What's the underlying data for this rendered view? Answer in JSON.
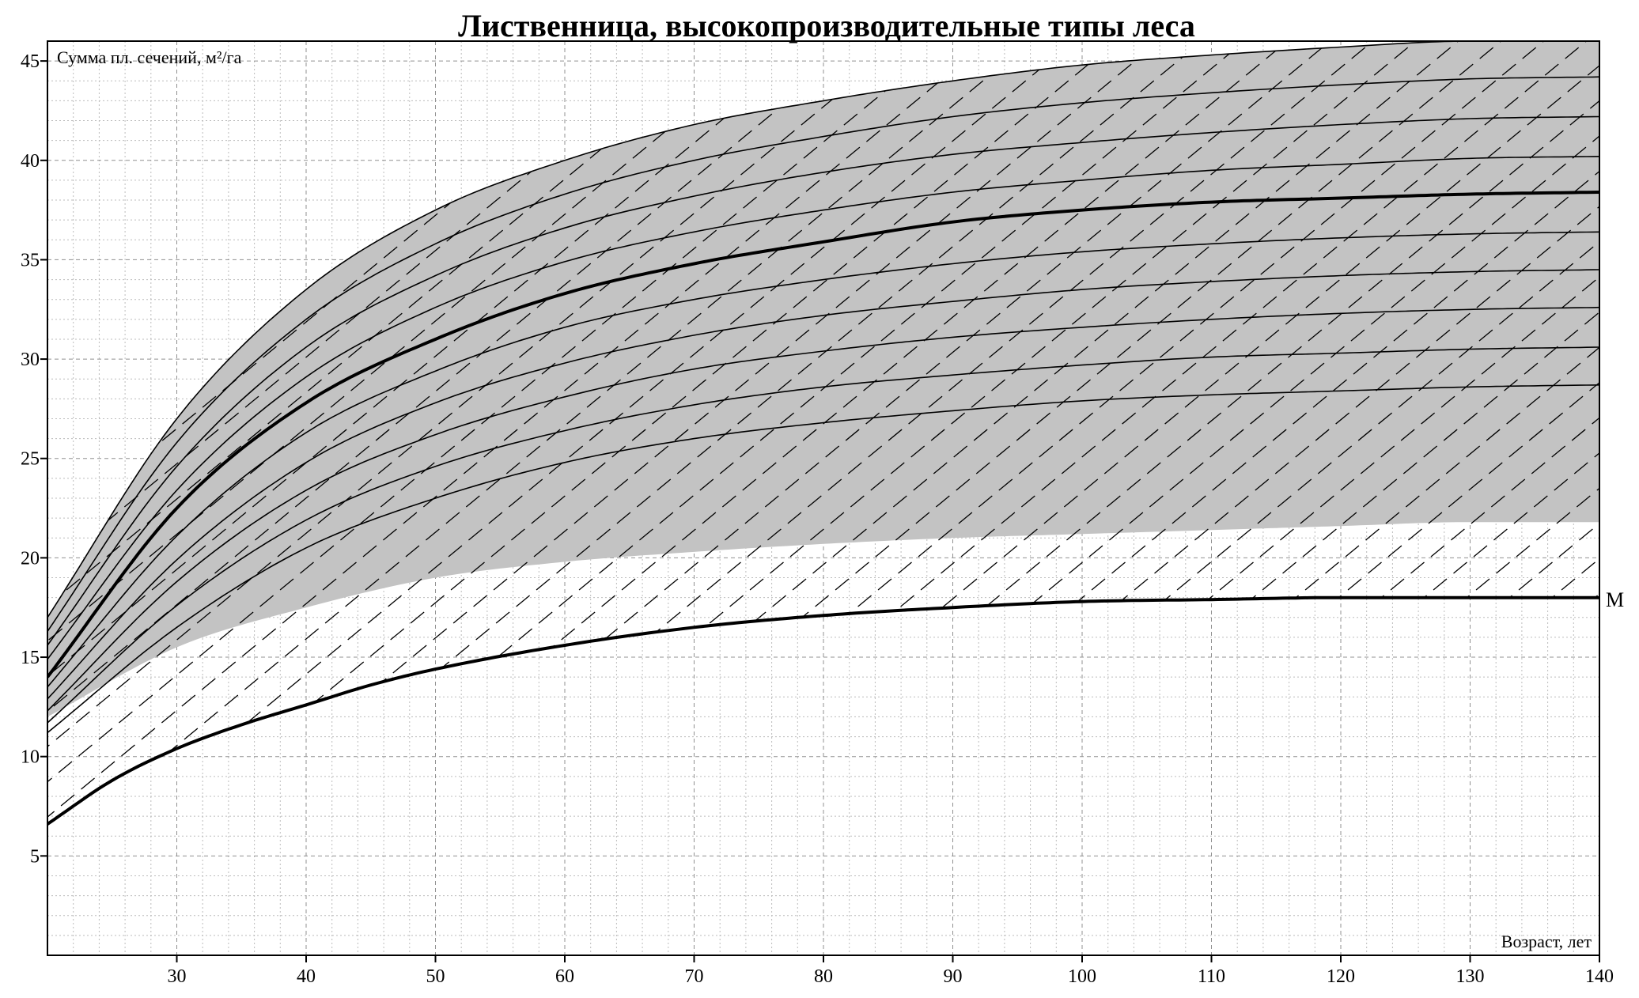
{
  "chart_data": {
    "type": "line",
    "title": "Лиственница, высокопроизводительные типы леса",
    "ylabel": "Сумма пл. сечений, м²/га",
    "xlabel": "Возраст, лет",
    "xlim": [
      20,
      140
    ],
    "ylim": [
      0,
      46
    ],
    "x_ticks": [
      30,
      40,
      50,
      60,
      70,
      80,
      90,
      100,
      110,
      120,
      130,
      140
    ],
    "y_ticks": [
      5,
      10,
      15,
      20,
      25,
      30,
      35,
      40,
      45
    ],
    "grid": true,
    "colors": {
      "band_fill": "#c3c3c3",
      "line": "#000000"
    },
    "band": {
      "x": [
        20,
        30,
        40,
        50,
        60,
        70,
        80,
        90,
        100,
        110,
        120,
        130,
        140
      ],
      "upper": [
        17.0,
        27.0,
        33.5,
        37.5,
        40.0,
        41.8,
        43.0,
        44.0,
        44.8,
        45.3,
        45.7,
        46.0,
        46.0
      ],
      "lower": [
        12.0,
        15.5,
        17.5,
        19.0,
        19.8,
        20.3,
        20.7,
        21.0,
        21.2,
        21.4,
        21.6,
        21.8,
        21.8
      ]
    },
    "series": [
      {
        "name": "",
        "x": [
          20,
          30,
          40,
          50,
          60,
          70,
          80,
          90,
          100,
          110,
          120,
          130,
          140
        ],
        "values": [
          17.0,
          27.0,
          33.5,
          37.5,
          40.0,
          41.8,
          43.0,
          44.0,
          44.8,
          45.3,
          45.7,
          46.0,
          46.0
        ]
      },
      {
        "name": "",
        "x": [
          20,
          30,
          40,
          50,
          60,
          70,
          80,
          90,
          100,
          110,
          120,
          130,
          140
        ],
        "values": [
          16.3,
          25.8,
          32.0,
          35.8,
          38.3,
          40.0,
          41.2,
          42.2,
          42.9,
          43.4,
          43.8,
          44.1,
          44.2
        ]
      },
      {
        "name": "",
        "x": [
          20,
          30,
          40,
          50,
          60,
          70,
          80,
          90,
          100,
          110,
          120,
          130,
          140
        ],
        "values": [
          15.6,
          24.6,
          30.6,
          34.2,
          36.6,
          38.2,
          39.4,
          40.3,
          40.9,
          41.4,
          41.8,
          42.1,
          42.2
        ]
      },
      {
        "name": "",
        "x": [
          20,
          30,
          40,
          50,
          60,
          70,
          80,
          90,
          100,
          110,
          120,
          130,
          140
        ],
        "values": [
          14.9,
          23.4,
          29.1,
          32.6,
          34.9,
          36.4,
          37.5,
          38.4,
          39.0,
          39.5,
          39.8,
          40.1,
          40.2
        ]
      },
      {
        "name": "",
        "x": [
          20,
          30,
          40,
          50,
          60,
          70,
          80,
          90,
          100,
          110,
          120,
          130,
          140
        ],
        "values": [
          14.0,
          22.5,
          27.8,
          31.0,
          33.3,
          34.8,
          35.9,
          36.9,
          37.5,
          37.9,
          38.1,
          38.3,
          38.4
        ]
      },
      {
        "name": "",
        "x": [
          20,
          30,
          40,
          50,
          60,
          70,
          80,
          90,
          100,
          110,
          120,
          130,
          140
        ],
        "values": [
          13.5,
          21.1,
          26.3,
          29.4,
          31.6,
          33.0,
          34.0,
          34.8,
          35.4,
          35.8,
          36.1,
          36.3,
          36.4
        ]
      },
      {
        "name": "",
        "x": [
          20,
          30,
          40,
          50,
          60,
          70,
          80,
          90,
          100,
          110,
          120,
          130,
          140
        ],
        "values": [
          12.9,
          19.9,
          24.8,
          27.8,
          29.8,
          31.2,
          32.2,
          32.9,
          33.5,
          33.9,
          34.2,
          34.4,
          34.5
        ]
      },
      {
        "name": "",
        "x": [
          20,
          30,
          40,
          50,
          60,
          70,
          80,
          90,
          100,
          110,
          120,
          130,
          140
        ],
        "values": [
          12.3,
          18.8,
          23.4,
          26.2,
          28.1,
          29.5,
          30.4,
          31.1,
          31.6,
          32.0,
          32.3,
          32.5,
          32.6
        ]
      },
      {
        "name": "",
        "x": [
          20,
          30,
          40,
          50,
          60,
          70,
          80,
          90,
          100,
          110,
          120,
          130,
          140
        ],
        "values": [
          11.7,
          17.6,
          21.9,
          24.6,
          26.4,
          27.7,
          28.6,
          29.2,
          29.7,
          30.1,
          30.3,
          30.5,
          30.6
        ]
      },
      {
        "name": "",
        "x": [
          20,
          30,
          40,
          50,
          60,
          70,
          80,
          90,
          100,
          110,
          120,
          130,
          140
        ],
        "values": [
          11.2,
          16.5,
          20.5,
          23.0,
          24.8,
          26.0,
          26.8,
          27.4,
          27.9,
          28.2,
          28.4,
          28.6,
          28.7
        ]
      },
      {
        "name": "М",
        "x": [
          20,
          25,
          30,
          35,
          40,
          45,
          50,
          60,
          70,
          80,
          90,
          100,
          110,
          120,
          130,
          140
        ],
        "values": [
          6.6,
          8.8,
          10.4,
          11.6,
          12.6,
          13.6,
          14.4,
          15.6,
          16.5,
          17.1,
          17.5,
          17.8,
          17.9,
          18.0,
          18.0,
          18.0
        ]
      }
    ],
    "thick_series_indices": [
      4,
      10
    ],
    "end_label": "М"
  }
}
